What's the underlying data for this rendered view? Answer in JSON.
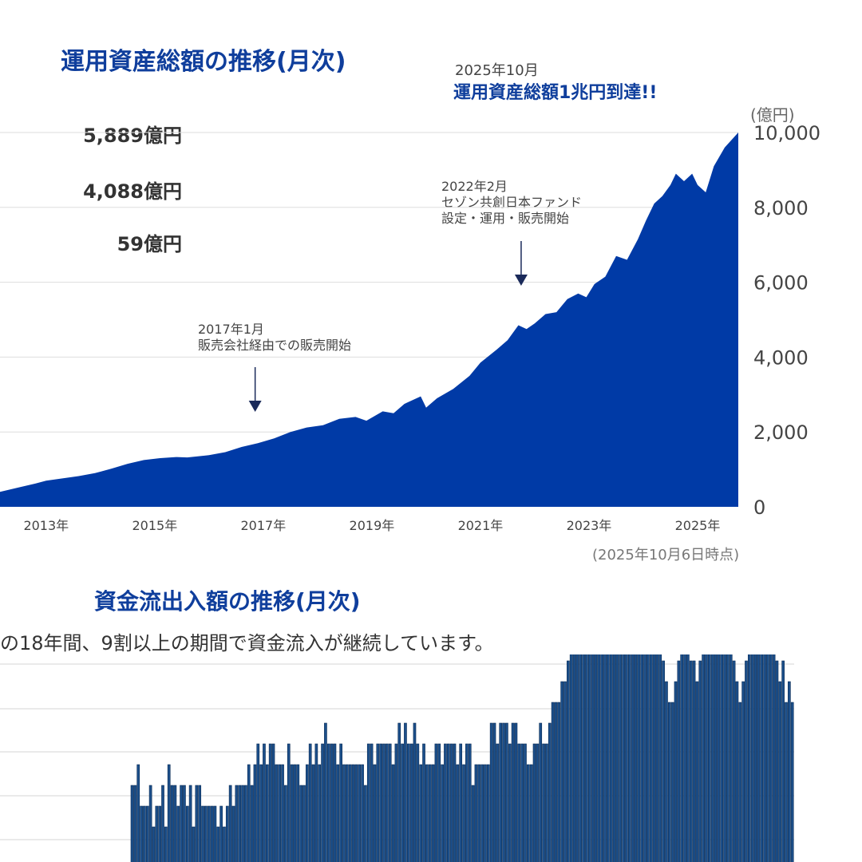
{
  "aum_chart": {
    "title": "運用資産総額の推移(月次)",
    "milestone_date": "2025年10月",
    "milestone_text": "運用資産総額1兆円到達!!",
    "legend_values": [
      "5,889億円",
      "4,088億円",
      "59億円"
    ],
    "unit": "(億円)",
    "note": "(2025年10月6日時点)",
    "annotations": [
      {
        "lines": [
          "2017年1月",
          "販売会社経由での販売開始"
        ],
        "x": 2016.85
      },
      {
        "lines": [
          "2022年2月",
          "セゾン共創日本ファンド",
          "設定・運用・販売開始"
        ],
        "x": 2021.75
      }
    ]
  },
  "flow_chart": {
    "title": "資金流出入額の推移(月次)",
    "subtitle": "の18年間、9割以上の期間で資金流入が継続しています。"
  },
  "colors": {
    "accent": "#0f3e9c",
    "area_fill": "#003aa6",
    "bar_fill": "#1c4f8a",
    "bar_stroke": "#0b2c55",
    "grid": "#dddddd"
  },
  "chart_data": [
    {
      "type": "area",
      "title": "運用資産総額の推移(月次)",
      "ylabel": "(億円)",
      "ylim": [
        0,
        10000
      ],
      "yticks": [
        0,
        2000,
        4000,
        6000,
        8000,
        10000
      ],
      "ytick_labels": [
        "0",
        "2,000",
        "4,000",
        "6,000",
        "8,000",
        "10,000"
      ],
      "xticks": [
        2013,
        2015,
        2017,
        2019,
        2021,
        2023,
        2025
      ],
      "xtick_labels": [
        "2013年",
        "2015年",
        "2017年",
        "2019年",
        "2021年",
        "2023年",
        "2025年"
      ],
      "xlim": [
        2012.15,
        2025.75
      ],
      "x": [
        2012.15,
        2012.5,
        2012.8,
        2013.0,
        2013.3,
        2013.6,
        2013.9,
        2014.2,
        2014.5,
        2014.8,
        2015.1,
        2015.4,
        2015.6,
        2016.0,
        2016.3,
        2016.6,
        2016.9,
        2017.2,
        2017.5,
        2017.8,
        2018.1,
        2018.4,
        2018.7,
        2018.9,
        2019.2,
        2019.4,
        2019.6,
        2019.9,
        2020.0,
        2020.2,
        2020.5,
        2020.8,
        2021.0,
        2021.3,
        2021.5,
        2021.7,
        2021.85,
        2022.0,
        2022.2,
        2022.4,
        2022.6,
        2022.8,
        2022.95,
        2023.1,
        2023.3,
        2023.5,
        2023.7,
        2023.9,
        2024.05,
        2024.2,
        2024.35,
        2024.5,
        2024.6,
        2024.75,
        2024.9,
        2025.0,
        2025.15,
        2025.3,
        2025.5,
        2025.75
      ],
      "values": [
        400,
        520,
        620,
        700,
        760,
        820,
        900,
        1020,
        1150,
        1250,
        1300,
        1330,
        1320,
        1380,
        1460,
        1600,
        1700,
        1830,
        2000,
        2120,
        2180,
        2350,
        2400,
        2300,
        2550,
        2500,
        2750,
        2950,
        2650,
        2900,
        3150,
        3500,
        3850,
        4200,
        4450,
        4850,
        4750,
        4900,
        5150,
        5200,
        5550,
        5700,
        5600,
        5950,
        6150,
        6700,
        6600,
        7150,
        7650,
        8100,
        8300,
        8600,
        8900,
        8700,
        8900,
        8600,
        8400,
        9100,
        9600,
        10000
      ]
    },
    {
      "type": "bar",
      "title": "資金流出入額の推移(月次)",
      "values": [
        3,
        3,
        4,
        2,
        2,
        2,
        3,
        1,
        2,
        2,
        3,
        1,
        4,
        3,
        3,
        2,
        3,
        3,
        2,
        3,
        1,
        3,
        3,
        2,
        2,
        2,
        2,
        2,
        1,
        2,
        1,
        2,
        3,
        2,
        3,
        3,
        3,
        3,
        4,
        3,
        4,
        5,
        4,
        5,
        4,
        5,
        5,
        4,
        4,
        4,
        3,
        5,
        4,
        4,
        4,
        3,
        3,
        4,
        5,
        4,
        5,
        4,
        5,
        6,
        5,
        5,
        5,
        4,
        5,
        4,
        4,
        4,
        4,
        4,
        4,
        4,
        3,
        5,
        5,
        4,
        5,
        5,
        5,
        5,
        5,
        4,
        5,
        6,
        5,
        6,
        5,
        5,
        6,
        5,
        4,
        5,
        4,
        4,
        4,
        5,
        5,
        4,
        5,
        5,
        5,
        5,
        4,
        5,
        4,
        5,
        5,
        3,
        4,
        4,
        4,
        4,
        4,
        6,
        6,
        5,
        6,
        6,
        6,
        5,
        6,
        6,
        5,
        5,
        5,
        4,
        4,
        5,
        5,
        6,
        5,
        5,
        6,
        7,
        7,
        7,
        8,
        8,
        9,
        10,
        11,
        11,
        10,
        12,
        11,
        10,
        12,
        12,
        12,
        13,
        13,
        12,
        13,
        12,
        12,
        11,
        11,
        11,
        11,
        12,
        11,
        11,
        10,
        11,
        10,
        11,
        11,
        10,
        10,
        9,
        8,
        7,
        7,
        8,
        9,
        10,
        10,
        11,
        9,
        9,
        8,
        9,
        11,
        12,
        12,
        13,
        14,
        14,
        13,
        12,
        11,
        10,
        9,
        8,
        7,
        8,
        9,
        10,
        11,
        11,
        10,
        11,
        11,
        12,
        11,
        10,
        9,
        8,
        9,
        7,
        8,
        7
      ]
    }
  ]
}
